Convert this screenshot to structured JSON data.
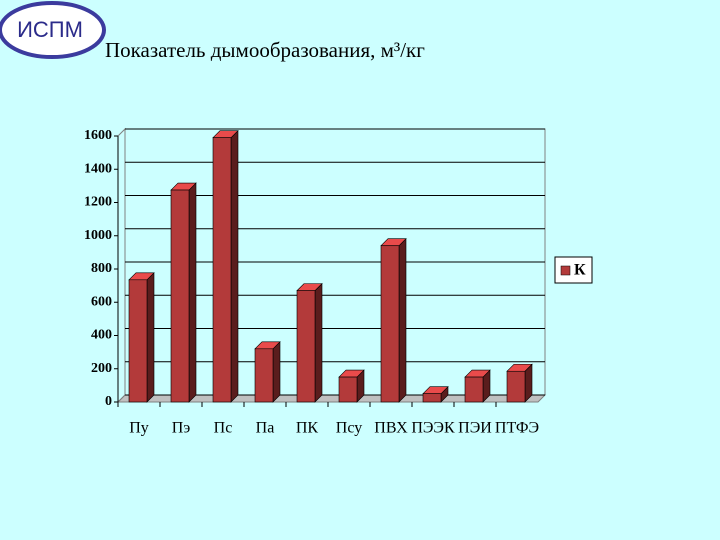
{
  "logo": "ИСПМ",
  "chart_data": {
    "type": "bar3d",
    "title": "Показатель дымообразования, м³/кг",
    "categories": [
      "Пу",
      "Пэ",
      "Пс",
      "Па",
      "ПК",
      "Псу",
      "ПВХ",
      "ПЭЭК",
      "ПЭИ",
      "ПТФЭ"
    ],
    "series": [
      {
        "name": "К",
        "color": "#b33a3a",
        "values": [
          735,
          1275,
          1590,
          320,
          670,
          150,
          940,
          50,
          150,
          185
        ]
      }
    ],
    "ylim": [
      0,
      1600
    ],
    "yticks": [
      0,
      200,
      400,
      600,
      800,
      1000,
      1200,
      1400,
      1600
    ],
    "grid": true,
    "legend": "right"
  }
}
